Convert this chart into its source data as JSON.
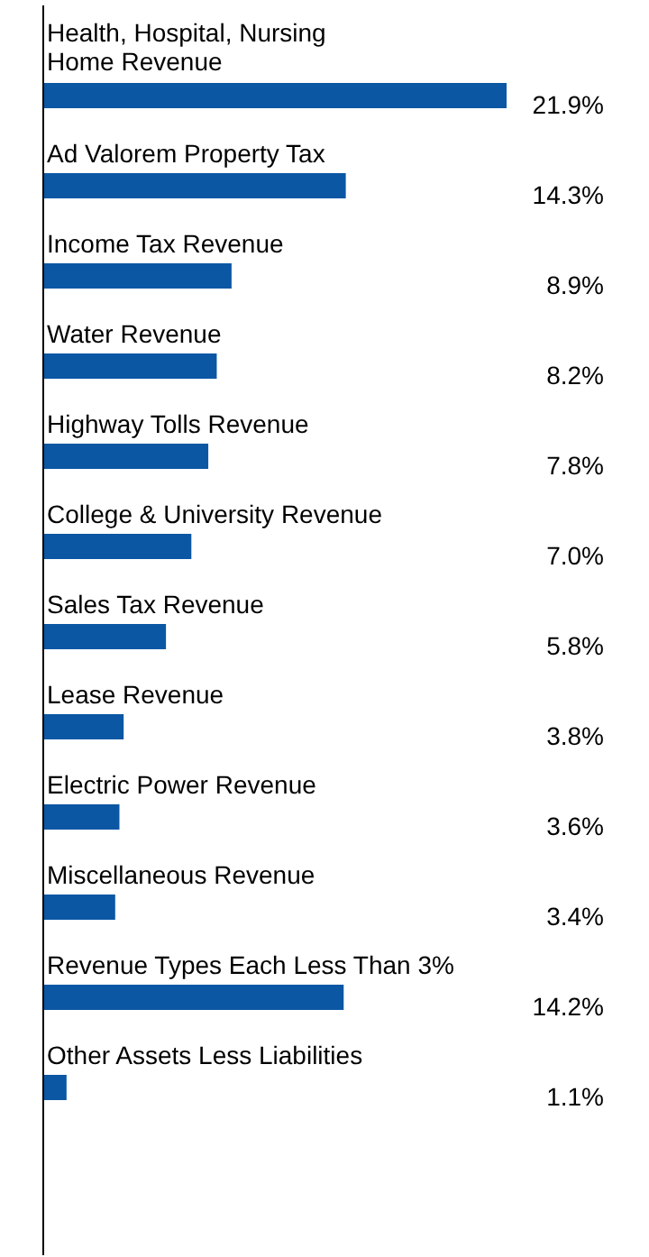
{
  "chart_data": {
    "type": "bar",
    "orientation": "horizontal",
    "categories": [
      "Health, Hospital, Nursing\nHome Revenue",
      "Ad Valorem Property Tax",
      "Income Tax Revenue",
      "Water Revenue",
      "Highway Tolls Revenue",
      "College & University Revenue",
      "Sales Tax Revenue",
      "Lease Revenue",
      "Electric Power Revenue",
      "Miscellaneous Revenue",
      "Revenue Types Each Less Than 3%",
      "Other Assets Less Liabilities"
    ],
    "values": [
      21.9,
      14.3,
      8.9,
      8.2,
      7.8,
      7.0,
      5.8,
      3.8,
      3.6,
      3.4,
      14.2,
      1.1
    ],
    "value_labels": [
      "21.9%",
      "14.3%",
      "8.9%",
      "8.2%",
      "7.8%",
      "7.0%",
      "5.8%",
      "3.8%",
      "3.6%",
      "3.4%",
      "14.2%",
      "1.1%"
    ],
    "color": "#0b57a4"
  }
}
